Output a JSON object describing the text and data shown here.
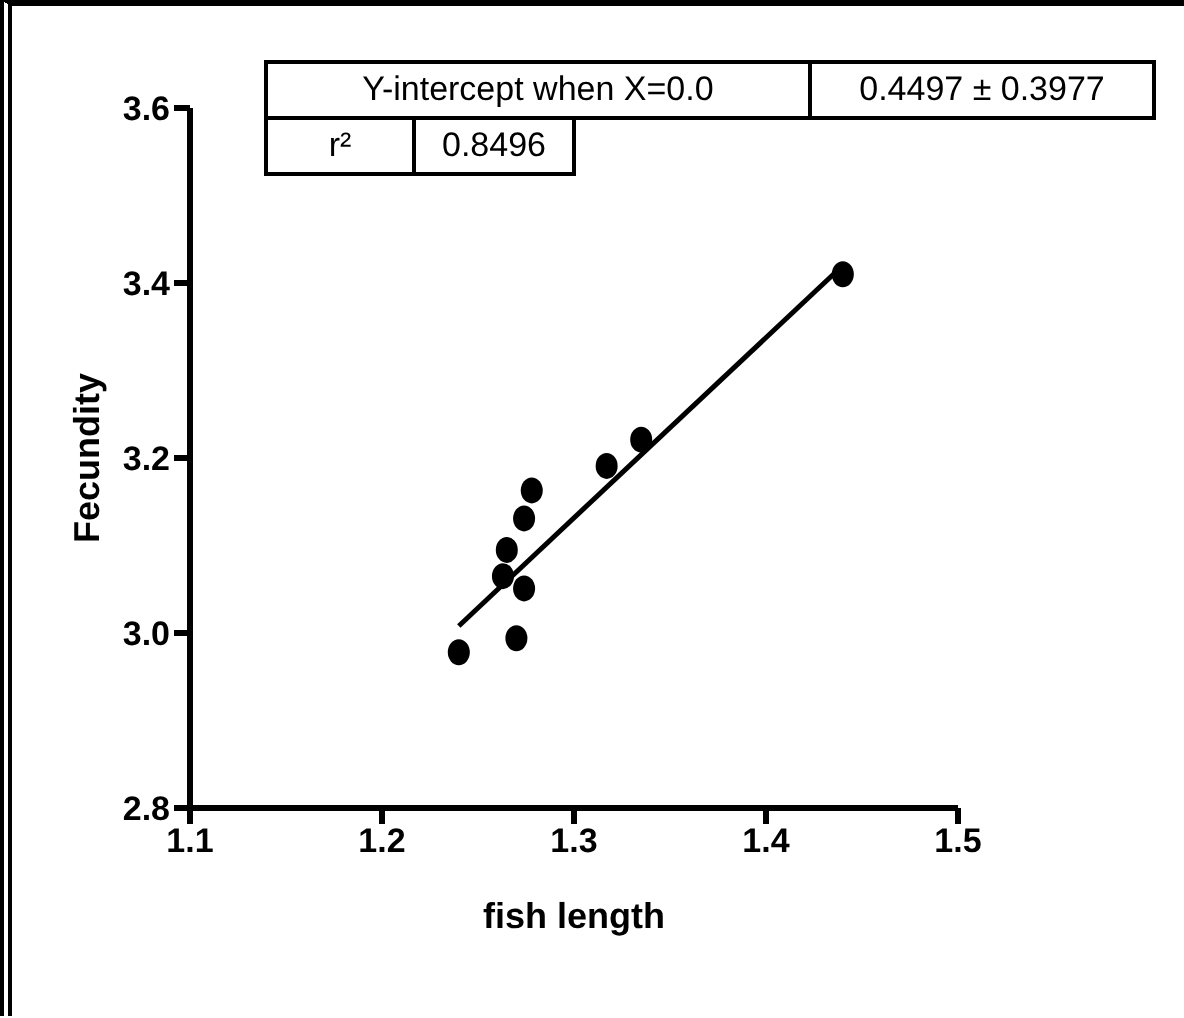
{
  "chart_data": {
    "type": "scatter",
    "xlabel": "fish length",
    "ylabel": "Fecundity",
    "xlim": [
      1.1,
      1.5
    ],
    "xticks": [
      1.1,
      1.2,
      1.3,
      1.4,
      1.5
    ],
    "ylim": [
      2.8,
      3.6
    ],
    "yticks": [
      {
        "value": 2.8,
        "label": "2.8"
      },
      {
        "value": 3.0,
        "label": "3.0"
      },
      {
        "value": 3.2,
        "label": "3.2"
      },
      {
        "value": 3.4,
        "label": "3.4"
      },
      {
        "value": 3.6,
        "label": "3.6"
      }
    ],
    "grid": false,
    "legend": false,
    "marker": "circle",
    "series": [
      {
        "color": "#000000",
        "x": [
          1.24,
          1.27,
          1.274,
          1.263,
          1.265,
          1.274,
          1.278,
          1.317,
          1.335,
          1.44
        ],
        "values": [
          2.978,
          2.994,
          3.051,
          3.065,
          3.095,
          3.131,
          3.163,
          3.191,
          3.221,
          3.41
        ]
      },
      {
        "type": "line",
        "color": "#000000",
        "line_style": "solid",
        "marker": "none",
        "x": [
          1.24,
          1.44
        ],
        "values": [
          3.008,
          3.42
        ]
      }
    ],
    "annotations": [
      "Y-intercept when X=0.0",
      "0.4497 ± 0.3977",
      "r²",
      "0.8496"
    ]
  }
}
